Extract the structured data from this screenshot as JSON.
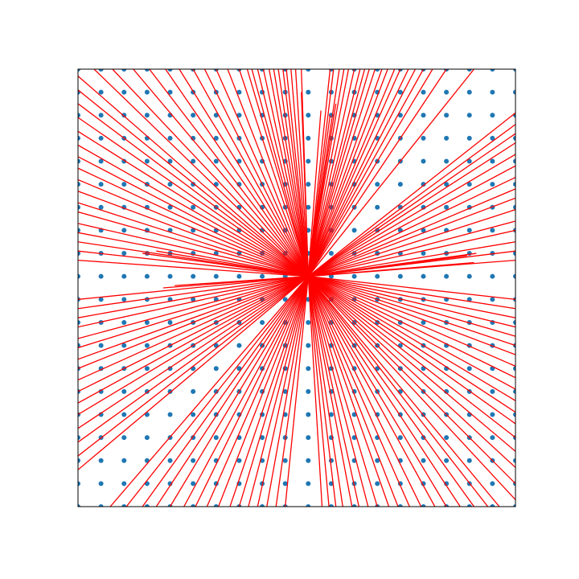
{
  "chart_data": {
    "type": "scatter",
    "title": "",
    "xlabel": "",
    "ylabel": "",
    "xlim": [
      -10,
      9
    ],
    "ylim": [
      -10,
      9
    ],
    "grid": false,
    "axes_ticks": false,
    "colors": {
      "points": "#1f77b4",
      "lines": "#ff0000",
      "frame": "#000000",
      "background": "#ffffff"
    },
    "points": {
      "x_start": -10,
      "x_end": 9,
      "y_start": -10,
      "y_end": 9,
      "step": 1
    },
    "center": [
      0,
      0
    ],
    "series": [
      {
        "type": "line-segments",
        "endpoints": [
          [
            -3,
            9
          ],
          [
            -2.65,
            9
          ],
          [
            -2.45,
            9
          ],
          [
            -2.2,
            9
          ],
          [
            -1.95,
            9
          ],
          [
            -1.7,
            9
          ],
          [
            -1.5,
            9
          ],
          [
            -1.3,
            9
          ],
          [
            -1.1,
            9
          ],
          [
            -0.95,
            9
          ],
          [
            -0.75,
            9
          ],
          [
            -0.55,
            9
          ],
          [
            -0.3,
            8
          ],
          [
            -0.3,
            9
          ],
          [
            0.95,
            9
          ],
          [
            1.1,
            9
          ],
          [
            1.35,
            9
          ],
          [
            1.55,
            9
          ],
          [
            1.75,
            9
          ],
          [
            2.0,
            9
          ],
          [
            2.25,
            9
          ],
          [
            2.45,
            9
          ],
          [
            2.65,
            9
          ],
          [
            2.9,
            9
          ],
          [
            3.2,
            9
          ],
          [
            3.45,
            9
          ],
          [
            3.75,
            9
          ],
          [
            4.0,
            9
          ],
          [
            4.35,
            9
          ],
          [
            4.65,
            9
          ],
          [
            5.0,
            9
          ],
          [
            5.4,
            9
          ],
          [
            6.0,
            9
          ],
          [
            7.2,
            9
          ],
          [
            0.95,
            7
          ],
          [
            0.55,
            7.2
          ],
          [
            1.2,
            7.5
          ],
          [
            9,
            7.1
          ],
          [
            9,
            6.6
          ],
          [
            9,
            6.2
          ],
          [
            9,
            5.8
          ],
          [
            9,
            5.3
          ],
          [
            9,
            4.8
          ],
          [
            9,
            4.3
          ],
          [
            9,
            3.8
          ],
          [
            9,
            3.4
          ],
          [
            9,
            2.9
          ],
          [
            9,
            2.4
          ],
          [
            9,
            2.0
          ],
          [
            9,
            1.5
          ],
          [
            9,
            1.1
          ],
          [
            9,
            0.7
          ],
          [
            7.3,
            1.0
          ],
          [
            6.9,
            0.9
          ],
          [
            7.2,
            0.6
          ],
          [
            9,
            -1.0
          ],
          [
            9,
            -1.4
          ],
          [
            9,
            -1.8
          ],
          [
            9,
            -2.2
          ],
          [
            9,
            -2.6
          ],
          [
            9,
            -3.0
          ],
          [
            9,
            -3.4
          ],
          [
            9,
            -3.9
          ],
          [
            9,
            -4.4
          ],
          [
            9,
            -4.9
          ],
          [
            9,
            -5.4
          ],
          [
            9,
            -5.9
          ],
          [
            9,
            -6.4
          ],
          [
            9,
            -7.0
          ],
          [
            9,
            -7.6
          ],
          [
            9,
            -8.3
          ],
          [
            9,
            -9.0
          ],
          [
            9,
            -9.7
          ],
          [
            8.3,
            -10
          ],
          [
            7.8,
            -10
          ],
          [
            7.2,
            -10
          ],
          [
            6.6,
            -10
          ],
          [
            6.0,
            -10
          ],
          [
            5.5,
            -10
          ],
          [
            4.9,
            -10
          ],
          [
            4.4,
            -10
          ],
          [
            3.9,
            -10
          ],
          [
            3.5,
            -10
          ],
          [
            3.0,
            -10
          ],
          [
            2.6,
            -10
          ],
          [
            2.2,
            -10
          ],
          [
            1.9,
            -10
          ],
          [
            1.5,
            -10
          ],
          [
            1.2,
            -10
          ],
          [
            0.9,
            -10
          ],
          [
            0.6,
            -10
          ],
          [
            -1.0,
            -10
          ],
          [
            -1.4,
            -10
          ],
          [
            -1.8,
            -10
          ],
          [
            -2.2,
            -10
          ],
          [
            -2.6,
            -10
          ],
          [
            -3.0,
            -10
          ],
          [
            -3.4,
            -10
          ],
          [
            -3.9,
            -10
          ],
          [
            -4.4,
            -10
          ],
          [
            -4.9,
            -10
          ],
          [
            -5.4,
            -10
          ],
          [
            -6.0,
            -10
          ],
          [
            -6.6,
            -10
          ],
          [
            -7.2,
            -10
          ],
          [
            -7.9,
            -10
          ],
          [
            -8.6,
            -10
          ],
          [
            -10,
            -8.4
          ],
          [
            -10,
            -7.8
          ],
          [
            -10,
            -7.2
          ],
          [
            -10,
            -6.6
          ],
          [
            -10,
            -6.0
          ],
          [
            -10,
            -5.5
          ],
          [
            -10,
            -5.0
          ],
          [
            -10,
            -4.5
          ],
          [
            -10,
            -4.0
          ],
          [
            -10,
            -3.6
          ],
          [
            -10,
            -3.1
          ],
          [
            -10,
            -2.7
          ],
          [
            -10,
            -2.2
          ],
          [
            -10,
            -1.8
          ],
          [
            -10,
            -1.4
          ],
          [
            -10,
            -1.0
          ],
          [
            -6.3,
            -0.5
          ],
          [
            -5.8,
            -0.4
          ],
          [
            -10,
            0.7
          ],
          [
            -10,
            1.1
          ],
          [
            -10,
            1.5
          ],
          [
            -10,
            1.9
          ],
          [
            -10,
            2.3
          ],
          [
            -10,
            2.8
          ],
          [
            -10,
            3.2
          ],
          [
            -10,
            3.7
          ],
          [
            -10,
            4.2
          ],
          [
            -10,
            4.7
          ],
          [
            -10,
            5.2
          ],
          [
            -10,
            5.7
          ],
          [
            -10,
            6.3
          ],
          [
            -10,
            6.9
          ],
          [
            -10,
            7.5
          ],
          [
            -10,
            8.1
          ],
          [
            -10,
            8.7
          ],
          [
            -9.3,
            9
          ],
          [
            -8.5,
            9
          ],
          [
            -7.6,
            9
          ],
          [
            -6.9,
            9
          ],
          [
            -6.2,
            9
          ],
          [
            -5.6,
            9
          ],
          [
            -5.0,
            9
          ],
          [
            -4.5,
            9
          ],
          [
            -4.0,
            9
          ],
          [
            -3.5,
            9
          ],
          [
            -7.2,
            1.0
          ],
          [
            -6.6,
            1.1
          ]
        ]
      }
    ]
  }
}
